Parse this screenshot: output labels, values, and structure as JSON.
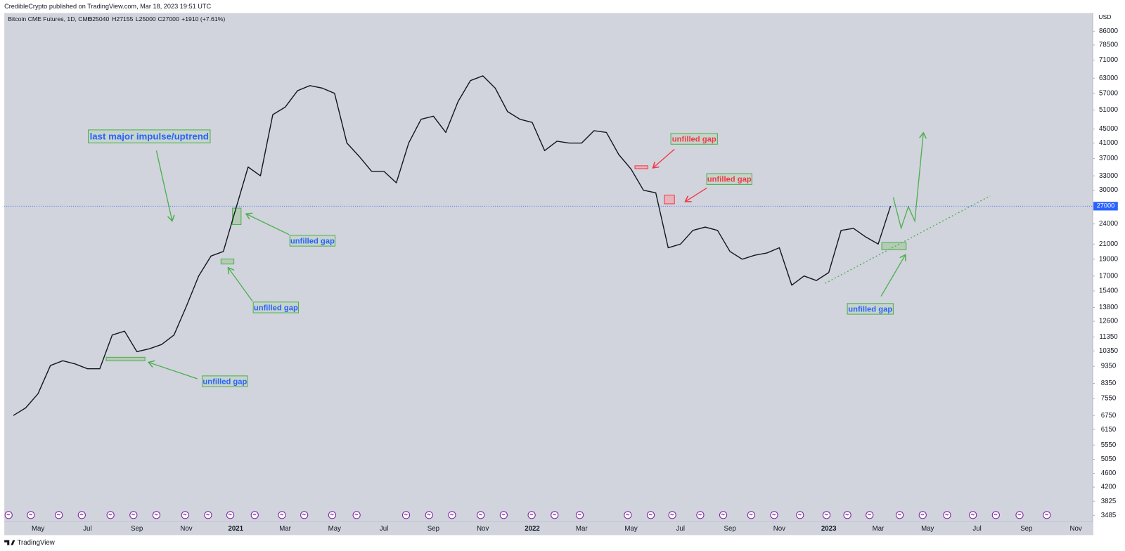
{
  "header": {
    "publisher": "CredibleCrypto published on TradingView.com, Mar 18, 2023 19:51 UTC",
    "symbol": "Bitcoin CME Futures, 1D, CME",
    "open": "O25040",
    "high": "H27155",
    "low": "L25000",
    "close": "C27000",
    "change": "+1910 (+7.61%)"
  },
  "chart_data": {
    "type": "line",
    "log_scale": true,
    "currency": "USD",
    "color": "#131722",
    "categories": [
      null,
      null,
      "May",
      null,
      null,
      null,
      "Jul",
      null,
      null,
      null,
      "Sep",
      null,
      null,
      null,
      "Nov",
      null,
      null,
      null,
      "2021",
      null,
      null,
      null,
      "Mar",
      null,
      null,
      null,
      "May",
      null,
      null,
      null,
      "Jul",
      null,
      null,
      null,
      "Sep",
      null,
      null,
      null,
      "Nov",
      null,
      null,
      null,
      "2022",
      null,
      null,
      null,
      "Mar",
      null,
      null,
      null,
      "May",
      null,
      null,
      null,
      "Jul",
      null,
      null,
      null,
      "Sep",
      null,
      null,
      null,
      "Nov",
      null,
      null,
      null,
      "2023",
      null,
      null,
      null,
      "Mar",
      null,
      null,
      null,
      "May",
      null,
      null,
      null,
      "Jul",
      null,
      null,
      null,
      "Sep",
      null,
      null,
      null,
      "Nov",
      null
    ],
    "series": [
      {
        "name": "Bitcoin CME Futures",
        "color": "#131722",
        "values": [
          6750,
          7100,
          7800,
          9400,
          9700,
          9500,
          9200,
          9200,
          11500,
          11800,
          10300,
          10500,
          10800,
          11500,
          13900,
          17000,
          19400,
          20000,
          26500,
          35000,
          33000,
          49500,
          52000,
          58000,
          60000,
          59000,
          57000,
          41000,
          37500,
          34000,
          34000,
          31500,
          41000,
          48000,
          49000,
          44000,
          54000,
          62000,
          64000,
          59000,
          50500,
          48000,
          47000,
          39000,
          41500,
          41000,
          41000,
          44500,
          44000,
          38000,
          34500,
          30000,
          29500,
          20500,
          21000,
          23000,
          23500,
          23000,
          20000,
          19000,
          19500,
          19800,
          20500,
          16000,
          17000,
          16500,
          17400,
          23000,
          23300,
          22000,
          21000,
          27000,
          null,
          null,
          null,
          null,
          null,
          null,
          null,
          null,
          null,
          null,
          null,
          null,
          null,
          null,
          null,
          null
        ]
      }
    ],
    "ylim": [
      3330,
      97000
    ],
    "yticks": [
      3485,
      3825,
      4200,
      4600,
      5050,
      5550,
      6150,
      6750,
      7550,
      8350,
      9350,
      10350,
      11350,
      12600,
      13800,
      15400,
      17000,
      19000,
      21000,
      24000,
      27000,
      30000,
      33000,
      37000,
      41000,
      45000,
      51000,
      57000,
      63000,
      71000,
      78500,
      86000
    ],
    "last_price": 27000,
    "annotations": [
      "last major impulse/uptrend",
      "unfilled gap",
      "unfilled gap",
      "unfilled gap",
      "unfilled gap",
      "unfilled gap",
      "unfilled gap"
    ]
  },
  "footer": {
    "brand": "TradingView"
  }
}
